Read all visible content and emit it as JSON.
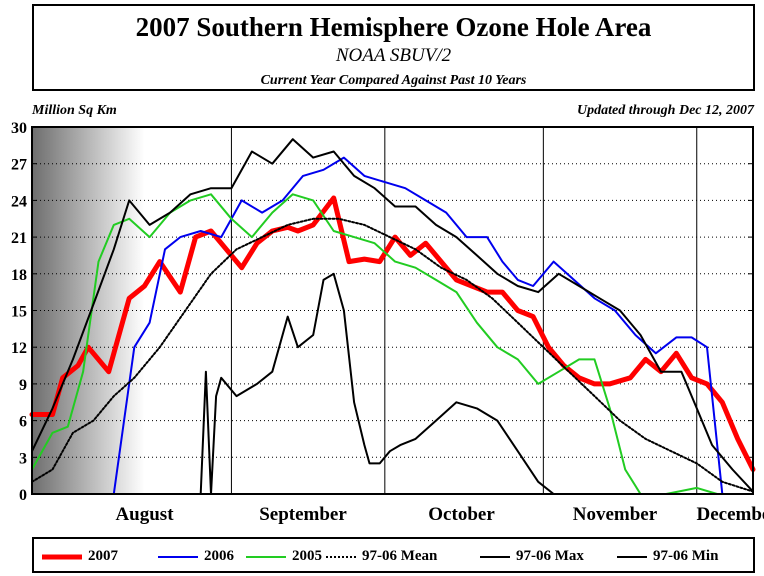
{
  "header": {
    "title": "2007 Southern Hemisphere Ozone Hole Area",
    "subtitle": "NOAA SBUV/2",
    "caption": "Current Year Compared Against Past 10 Years",
    "units": "Million Sq Km",
    "updated": "Updated through Dec 12, 2007"
  },
  "chart_data": {
    "type": "line",
    "ylabel": "Million Sq Km",
    "ylim": [
      0,
      30
    ],
    "yticks": [
      0,
      3,
      6,
      9,
      12,
      15,
      18,
      21,
      24,
      27,
      30
    ],
    "xlim": [
      "Jul 24",
      "Dec 12"
    ],
    "month_labels": [
      "August",
      "September",
      "October",
      "November",
      "December"
    ],
    "month_boundaries": [
      "Sep 1",
      "Oct 1",
      "Nov 1",
      "Dec 1"
    ],
    "grid": "dotted horizontal, solid vertical at month boundaries",
    "shaded_region": [
      "Jul 24",
      "Aug 15"
    ],
    "legend_position": "bottom",
    "series": [
      {
        "name": "2007",
        "color": "#ff0000",
        "style": "thick",
        "x": [
          "Jul 24",
          "Jul 28",
          "Jul 30",
          "Aug 2",
          "Aug 4",
          "Aug 8",
          "Aug 12",
          "Aug 15",
          "Aug 18",
          "Aug 22",
          "Aug 25",
          "Aug 28",
          "Aug 31",
          "Sep 3",
          "Sep 6",
          "Sep 9",
          "Sep 12",
          "Sep 14",
          "Sep 17",
          "Sep 21",
          "Sep 24",
          "Sep 27",
          "Sep 30",
          "Oct 3",
          "Oct 6",
          "Oct 9",
          "Oct 12",
          "Oct 15",
          "Oct 18",
          "Oct 21",
          "Oct 24",
          "Oct 27",
          "Oct 30",
          "Nov 2",
          "Nov 5",
          "Nov 8",
          "Nov 11",
          "Nov 14",
          "Nov 18",
          "Nov 21",
          "Nov 24",
          "Nov 27",
          "Nov 30",
          "Dec 3",
          "Dec 6",
          "Dec 9",
          "Dec 12"
        ],
        "values": [
          6.5,
          6.5,
          9.5,
          10.5,
          12,
          10,
          16,
          17,
          19,
          16.5,
          21,
          21.5,
          20,
          18.5,
          20.5,
          21.5,
          21.8,
          21.5,
          22,
          24.2,
          19,
          19.2,
          19,
          21,
          19.5,
          20.5,
          19,
          17.5,
          17,
          16.5,
          16.5,
          15,
          14.5,
          12,
          10.5,
          9.5,
          9,
          9,
          9.5,
          11,
          10,
          11.5,
          9.5,
          9,
          7.5,
          4.5,
          2
        ]
      },
      {
        "name": "2006",
        "color": "#0000ee",
        "style": "thin",
        "x": [
          "Aug 9",
          "Aug 13",
          "Aug 16",
          "Aug 19",
          "Aug 22",
          "Aug 26",
          "Aug 30",
          "Sep 3",
          "Sep 7",
          "Sep 11",
          "Sep 15",
          "Sep 19",
          "Sep 23",
          "Sep 27",
          "Oct 1",
          "Oct 5",
          "Oct 9",
          "Oct 13",
          "Oct 17",
          "Oct 21",
          "Oct 24",
          "Oct 27",
          "Oct 30",
          "Nov 3",
          "Nov 7",
          "Nov 11",
          "Nov 15",
          "Nov 19",
          "Nov 23",
          "Nov 27",
          "Nov 30",
          "Dec 3",
          "Dec 6",
          "Dec 9",
          "Dec 12"
        ],
        "values": [
          0,
          12,
          14,
          20,
          21,
          21.5,
          21,
          24,
          23,
          24,
          26,
          26.5,
          27.5,
          26,
          25.5,
          25,
          24,
          23,
          21,
          21,
          19,
          17.5,
          17,
          19,
          17.5,
          16,
          15,
          13,
          11.5,
          12.8,
          12.8,
          12,
          0,
          0,
          0
        ]
      },
      {
        "name": "2005",
        "color": "#22cc22",
        "style": "thin",
        "x": [
          "Jul 24",
          "Jul 28",
          "Jul 31",
          "Aug 3",
          "Aug 6",
          "Aug 9",
          "Aug 12",
          "Aug 16",
          "Aug 20",
          "Aug 24",
          "Aug 28",
          "Sep 1",
          "Sep 5",
          "Sep 9",
          "Sep 13",
          "Sep 17",
          "Sep 21",
          "Sep 25",
          "Sep 29",
          "Oct 3",
          "Oct 7",
          "Oct 11",
          "Oct 15",
          "Oct 19",
          "Oct 23",
          "Oct 27",
          "Oct 31",
          "Nov 4",
          "Nov 8",
          "Nov 11",
          "Nov 14",
          "Nov 17",
          "Nov 20",
          "Nov 22",
          "Nov 25",
          "Dec 1",
          "Dec 5",
          "Dec 12"
        ],
        "values": [
          2,
          5,
          5.5,
          10,
          19,
          22,
          22.5,
          21,
          23,
          24,
          24.5,
          22.5,
          21,
          23,
          24.5,
          24,
          21.5,
          21,
          20.5,
          19,
          18.5,
          17.5,
          16.5,
          14,
          12,
          11,
          9,
          10,
          11,
          11,
          7,
          2,
          0,
          0,
          0,
          0.5,
          0,
          0
        ]
      },
      {
        "name": "97-06 Mean",
        "color": "#000000",
        "style": "dotted",
        "x": [
          "Jul 24",
          "Jul 28",
          "Aug 1",
          "Aug 5",
          "Aug 9",
          "Aug 13",
          "Aug 18",
          "Aug 23",
          "Aug 28",
          "Sep 2",
          "Sep 7",
          "Sep 12",
          "Sep 17",
          "Sep 22",
          "Sep 27",
          "Oct 2",
          "Oct 7",
          "Oct 12",
          "Oct 17",
          "Oct 22",
          "Oct 27",
          "Nov 1",
          "Nov 6",
          "Nov 11",
          "Nov 16",
          "Nov 21",
          "Nov 26",
          "Dec 1",
          "Dec 6",
          "Dec 12"
        ],
        "values": [
          1,
          2,
          5,
          6,
          8,
          9.5,
          12,
          15,
          18,
          20,
          21,
          22,
          22.5,
          22.5,
          22,
          21,
          20,
          18.5,
          17.5,
          16,
          14,
          12,
          10,
          8,
          6,
          4.5,
          3.5,
          2.5,
          1,
          0.2
        ]
      },
      {
        "name": "97-06 Max",
        "color": "#000000",
        "style": "thin",
        "x": [
          "Jul 24",
          "Jul 28",
          "Aug 1",
          "Aug 5",
          "Aug 9",
          "Aug 12",
          "Aug 16",
          "Aug 20",
          "Aug 24",
          "Aug 28",
          "Sep 1",
          "Sep 5",
          "Sep 9",
          "Sep 13",
          "Sep 17",
          "Sep 21",
          "Sep 25",
          "Sep 29",
          "Oct 3",
          "Oct 7",
          "Oct 11",
          "Oct 15",
          "Oct 19",
          "Oct 23",
          "Oct 27",
          "Oct 31",
          "Nov 4",
          "Nov 8",
          "Nov 12",
          "Nov 16",
          "Nov 20",
          "Nov 24",
          "Nov 28",
          "Dec 1",
          "Dec 4",
          "Dec 8",
          "Dec 12"
        ],
        "values": [
          3.5,
          7,
          11,
          15.5,
          20,
          24,
          22,
          23,
          24.5,
          25,
          25,
          28,
          27,
          29,
          27.5,
          28,
          26,
          25,
          23.5,
          23.5,
          22,
          21,
          19.5,
          18,
          17,
          16.5,
          18,
          17,
          16,
          15,
          13,
          10,
          10,
          7,
          4,
          2,
          0.2
        ]
      },
      {
        "name": "97-06 Min",
        "color": "#000000",
        "style": "thin",
        "x": [
          "Aug 26",
          "Aug 27",
          "Aug 28",
          "Aug 29",
          "Aug 30",
          "Sep 2",
          "Sep 6",
          "Sep 9",
          "Sep 12",
          "Sep 14",
          "Sep 17",
          "Sep 19",
          "Sep 21",
          "Sep 23",
          "Sep 25",
          "Sep 27",
          "Sep 28",
          "Sep 30",
          "Oct 2",
          "Oct 4",
          "Oct 7",
          "Oct 11",
          "Oct 15",
          "Oct 19",
          "Oct 23",
          "Oct 27",
          "Oct 31",
          "Nov 3",
          "Nov 6"
        ],
        "values": [
          0,
          10,
          0,
          8,
          9.5,
          8,
          9,
          10,
          14.5,
          12,
          13,
          17.5,
          18,
          15,
          7.5,
          4,
          2.5,
          2.5,
          3.5,
          4,
          4.5,
          6,
          7.5,
          7,
          6,
          3.5,
          1,
          0,
          0
        ]
      }
    ]
  },
  "legend": [
    {
      "label": "2007"
    },
    {
      "label": "2006"
    },
    {
      "label": "2005"
    },
    {
      "label": "97-06 Mean"
    },
    {
      "label": "97-06 Max"
    },
    {
      "label": "97-06 Min"
    }
  ]
}
